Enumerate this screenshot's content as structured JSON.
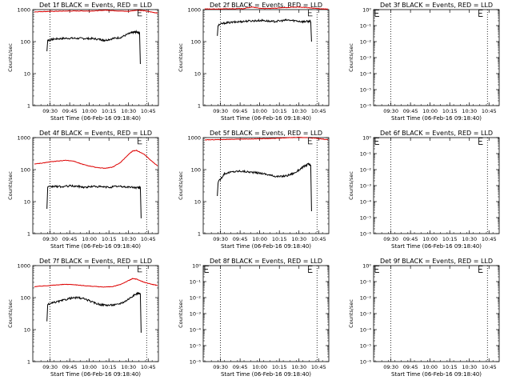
{
  "figure": {
    "x_ticks": [
      "09:30",
      "09:45",
      "10:00",
      "10:15",
      "10:30",
      "10:45"
    ],
    "x_label": "Start Time (06-Feb-16 09:18:40)",
    "y_label": "Counts/sec",
    "colors": {
      "events": "#000000",
      "lld": "#dd0000"
    }
  },
  "chart_data": [
    {
      "type": "line",
      "title": "Det 1f BLACK = Events, RED = LLD",
      "yscale": "log",
      "ylim": [
        1,
        1000
      ],
      "y_ticks": [
        "1",
        "10",
        "100",
        "1000"
      ],
      "xlim": [
        9.28,
        10.88
      ],
      "dotted_x": [
        9.5,
        10.73
      ],
      "marker": {
        "x": 10.62,
        "y": 800
      },
      "series": [
        {
          "color": "events",
          "x": [
            9.46,
            9.47,
            9.55,
            9.65,
            9.75,
            9.85,
            9.95,
            10.05,
            10.15,
            10.2,
            10.3,
            10.4,
            10.5,
            10.56,
            10.6,
            10.64,
            10.65
          ],
          "y": [
            50,
            110,
            120,
            125,
            128,
            126,
            125,
            124,
            115,
            110,
            125,
            135,
            175,
            195,
            200,
            190,
            20
          ]
        },
        {
          "color": "lld",
          "x": [
            9.3,
            9.4,
            9.5,
            9.6,
            9.7,
            9.8,
            9.9,
            10.0,
            10.1,
            10.2,
            10.3,
            10.4,
            10.5,
            10.6,
            10.7,
            10.8,
            10.87
          ],
          "y": [
            850,
            870,
            880,
            890,
            900,
            905,
            910,
            900,
            920,
            960,
            930,
            900,
            880,
            960,
            920,
            830,
            780
          ]
        }
      ]
    },
    {
      "type": "line",
      "title": "Det 2f BLACK = Events, RED = LLD",
      "yscale": "log",
      "ylim": [
        1,
        1000
      ],
      "y_ticks": [
        "1",
        "10",
        "100",
        "1000"
      ],
      "xlim": [
        9.28,
        10.88
      ],
      "dotted_x": [
        9.5,
        10.73
      ],
      "marker": {
        "x": 10.62,
        "y": 800
      },
      "series": [
        {
          "color": "events",
          "x": [
            9.46,
            9.47,
            9.55,
            9.65,
            9.75,
            9.85,
            9.95,
            10.05,
            10.15,
            10.25,
            10.35,
            10.45,
            10.55,
            10.62,
            10.65,
            10.66
          ],
          "y": [
            150,
            330,
            380,
            400,
            420,
            440,
            450,
            460,
            420,
            440,
            470,
            450,
            420,
            430,
            420,
            100
          ]
        },
        {
          "color": "lld",
          "x": [
            9.3,
            9.4,
            9.5,
            9.6,
            9.7,
            9.8,
            9.9,
            10.0,
            10.1,
            10.2,
            10.3,
            10.4,
            10.5,
            10.6,
            10.7,
            10.8,
            10.87
          ],
          "y": [
            1050,
            1040,
            1050,
            1060,
            1070,
            1080,
            1200,
            1100,
            1080,
            1100,
            1150,
            1180,
            1200,
            1150,
            1100,
            1060,
            1030
          ]
        }
      ]
    },
    {
      "type": "line",
      "title": "Det 3f BLACK = Events, RED = LLD",
      "yscale": "log",
      "ylim": [
        1e-06,
        1
      ],
      "y_ticks": [
        "10⁻⁶",
        "10⁻⁵",
        "10⁻⁴",
        "10⁻³",
        "10⁻²",
        "10⁻¹",
        "10⁰"
      ],
      "xlim": [
        9.28,
        10.88
      ],
      "dotted_x": [
        9.5,
        10.73
      ],
      "marker": {
        "x": 10.62,
        "y": 0.6
      },
      "left_marker": {
        "x": 9.3,
        "y": 0.6
      },
      "series": []
    },
    {
      "type": "line",
      "title": "Det 4f BLACK = Events, RED = LLD",
      "yscale": "log",
      "ylim": [
        1,
        1000
      ],
      "y_ticks": [
        "1",
        "10",
        "100",
        "1000"
      ],
      "xlim": [
        9.28,
        10.88
      ],
      "dotted_x": [
        9.5,
        10.73
      ],
      "marker": {
        "x": 10.62,
        "y": 800
      },
      "series": [
        {
          "color": "events",
          "x": [
            9.46,
            9.47,
            9.55,
            9.65,
            9.75,
            9.85,
            9.95,
            10.05,
            10.15,
            10.25,
            10.35,
            10.45,
            10.55,
            10.62,
            10.65,
            10.66
          ],
          "y": [
            6,
            28,
            30,
            29,
            31,
            30,
            28,
            30,
            29,
            28,
            30,
            29,
            28,
            27,
            28,
            3
          ]
        },
        {
          "color": "lld",
          "x": [
            9.3,
            9.4,
            9.5,
            9.6,
            9.7,
            9.8,
            9.9,
            10.0,
            10.1,
            10.2,
            10.3,
            10.4,
            10.5,
            10.55,
            10.6,
            10.7,
            10.8,
            10.87
          ],
          "y": [
            150,
            160,
            175,
            185,
            195,
            185,
            150,
            130,
            115,
            110,
            120,
            170,
            300,
            380,
            400,
            300,
            180,
            130
          ]
        }
      ]
    },
    {
      "type": "line",
      "title": "Det 5f BLACK = Events, RED = LLD",
      "yscale": "log",
      "ylim": [
        1,
        1000
      ],
      "y_ticks": [
        "1",
        "10",
        "100",
        "1000"
      ],
      "xlim": [
        9.28,
        10.88
      ],
      "dotted_x": [
        9.5,
        10.73
      ],
      "marker": {
        "x": 10.62,
        "y": 800
      },
      "series": [
        {
          "color": "events",
          "x": [
            9.46,
            9.47,
            9.55,
            9.65,
            9.75,
            9.85,
            9.95,
            10.05,
            10.15,
            10.25,
            10.35,
            10.45,
            10.55,
            10.62,
            10.65,
            10.66
          ],
          "y": [
            15,
            40,
            75,
            85,
            90,
            85,
            80,
            75,
            65,
            60,
            65,
            80,
            120,
            150,
            130,
            5
          ]
        },
        {
          "color": "lld",
          "x": [
            9.3,
            9.4,
            9.5,
            9.6,
            9.7,
            9.8,
            9.9,
            10.0,
            10.1,
            10.2,
            10.3,
            10.4,
            10.5,
            10.6,
            10.7,
            10.8,
            10.87
          ],
          "y": [
            850,
            860,
            870,
            880,
            890,
            900,
            910,
            920,
            930,
            950,
            980,
            1000,
            1020,
            1000,
            960,
            900,
            860
          ]
        }
      ]
    },
    {
      "type": "line",
      "title": "Det 6f BLACK = Events, RED = LLD",
      "yscale": "log",
      "ylim": [
        1e-06,
        1
      ],
      "y_ticks": [
        "10⁻⁶",
        "10⁻⁵",
        "10⁻⁴",
        "10⁻³",
        "10⁻²",
        "10⁻¹",
        "10⁰"
      ],
      "xlim": [
        9.28,
        10.88
      ],
      "dotted_x": [
        9.5,
        10.73
      ],
      "marker": {
        "x": 10.62,
        "y": 0.6
      },
      "left_marker": {
        "x": 9.3,
        "y": 0.6
      },
      "series": []
    },
    {
      "type": "line",
      "title": "Det 7f BLACK = Events, RED = LLD",
      "yscale": "log",
      "ylim": [
        1,
        1000
      ],
      "y_ticks": [
        "1",
        "10",
        "100",
        "1000"
      ],
      "xlim": [
        9.28,
        10.88
      ],
      "dotted_x": [
        9.5,
        10.73
      ],
      "marker": {
        "x": 10.62,
        "y": 800
      },
      "series": [
        {
          "color": "events",
          "x": [
            9.46,
            9.47,
            9.55,
            9.65,
            9.75,
            9.85,
            9.95,
            10.05,
            10.15,
            10.25,
            10.35,
            10.45,
            10.55,
            10.62,
            10.65,
            10.66
          ],
          "y": [
            18,
            60,
            70,
            80,
            95,
            100,
            90,
            70,
            60,
            58,
            60,
            75,
            110,
            140,
            130,
            8
          ]
        },
        {
          "color": "lld",
          "x": [
            9.3,
            9.4,
            9.5,
            9.6,
            9.7,
            9.8,
            9.9,
            10.0,
            10.1,
            10.2,
            10.3,
            10.4,
            10.5,
            10.55,
            10.6,
            10.7,
            10.8,
            10.87
          ],
          "y": [
            220,
            230,
            240,
            250,
            260,
            255,
            240,
            230,
            220,
            215,
            220,
            260,
            340,
            390,
            380,
            300,
            260,
            240
          ]
        }
      ]
    },
    {
      "type": "line",
      "title": "Det 8f BLACK = Events, RED = LLD",
      "yscale": "log",
      "ylim": [
        1e-06,
        1
      ],
      "y_ticks": [
        "10⁻⁶",
        "10⁻⁵",
        "10⁻⁴",
        "10⁻³",
        "10⁻²",
        "10⁻¹",
        "10⁰"
      ],
      "xlim": [
        9.28,
        10.88
      ],
      "dotted_x": [
        9.5,
        10.73
      ],
      "marker": {
        "x": 10.62,
        "y": 0.6
      },
      "left_marker": {
        "x": 9.3,
        "y": 0.6
      },
      "series": []
    },
    {
      "type": "line",
      "title": "Det 9f BLACK = Events, RED = LLD",
      "yscale": "log",
      "ylim": [
        1e-06,
        1
      ],
      "y_ticks": [
        "10⁻⁶",
        "10⁻⁵",
        "10⁻⁴",
        "10⁻³",
        "10⁻²",
        "10⁻¹",
        "10⁰"
      ],
      "xlim": [
        9.28,
        10.88
      ],
      "dotted_x": [
        9.5,
        10.73
      ],
      "marker": {
        "x": 10.62,
        "y": 0.6
      },
      "left_marker": {
        "x": 9.3,
        "y": 0.6
      },
      "series": []
    }
  ]
}
